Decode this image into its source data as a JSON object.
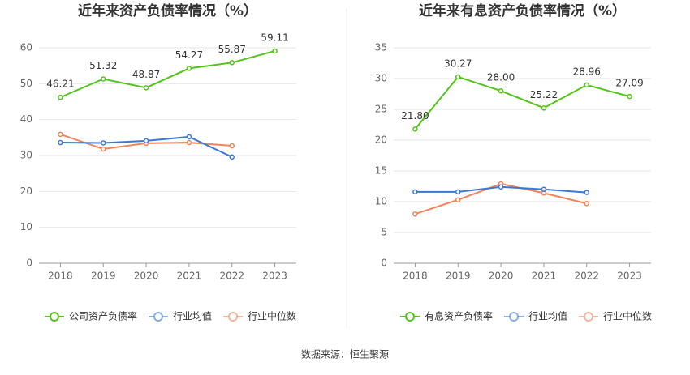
{
  "chart_data": [
    {
      "type": "line",
      "title": "近年来资产负债率情况（%）",
      "categories": [
        "2018",
        "2019",
        "2020",
        "2021",
        "2022",
        "2023"
      ],
      "ylim": [
        0,
        60
      ],
      "yticks": [
        0,
        10,
        20,
        30,
        40,
        50,
        60
      ],
      "grid": true,
      "legend": "bottom",
      "series": [
        {
          "name": "公司资产负债率",
          "color": "#52c41a",
          "values": [
            46.21,
            51.32,
            48.87,
            54.27,
            55.87,
            59.11
          ],
          "value_labels": [
            "46.21",
            "51.32",
            "48.87",
            "54.27",
            "55.87",
            "59.11"
          ]
        },
        {
          "name": "行业均值",
          "color": "#3a78d8",
          "values": [
            33.6,
            33.5,
            34.1,
            35.2,
            29.6,
            null
          ]
        },
        {
          "name": "行业中位数",
          "color": "#f0845a",
          "values": [
            35.9,
            31.8,
            33.4,
            33.6,
            32.7,
            null
          ]
        }
      ]
    },
    {
      "type": "line",
      "title": "近年来有息资产负债率情况（%）",
      "categories": [
        "2018",
        "2019",
        "2020",
        "2021",
        "2022",
        "2023"
      ],
      "ylim": [
        0,
        35
      ],
      "yticks": [
        0,
        5,
        10,
        15,
        20,
        25,
        30,
        35
      ],
      "grid": true,
      "legend": "bottom",
      "series": [
        {
          "name": "有息资产负债率",
          "color": "#52c41a",
          "values": [
            21.8,
            30.27,
            28.0,
            25.22,
            28.96,
            27.09
          ],
          "value_labels": [
            "21.80",
            "30.27",
            "28.00",
            "25.22",
            "28.96",
            "27.09"
          ]
        },
        {
          "name": "行业均值",
          "color": "#3a78d8",
          "values": [
            11.6,
            11.6,
            12.4,
            12.0,
            11.5,
            null
          ]
        },
        {
          "name": "行业中位数",
          "color": "#f0845a",
          "values": [
            8.0,
            10.3,
            12.9,
            11.4,
            9.7,
            null
          ]
        }
      ]
    }
  ],
  "source": "数据来源：恒生聚源"
}
